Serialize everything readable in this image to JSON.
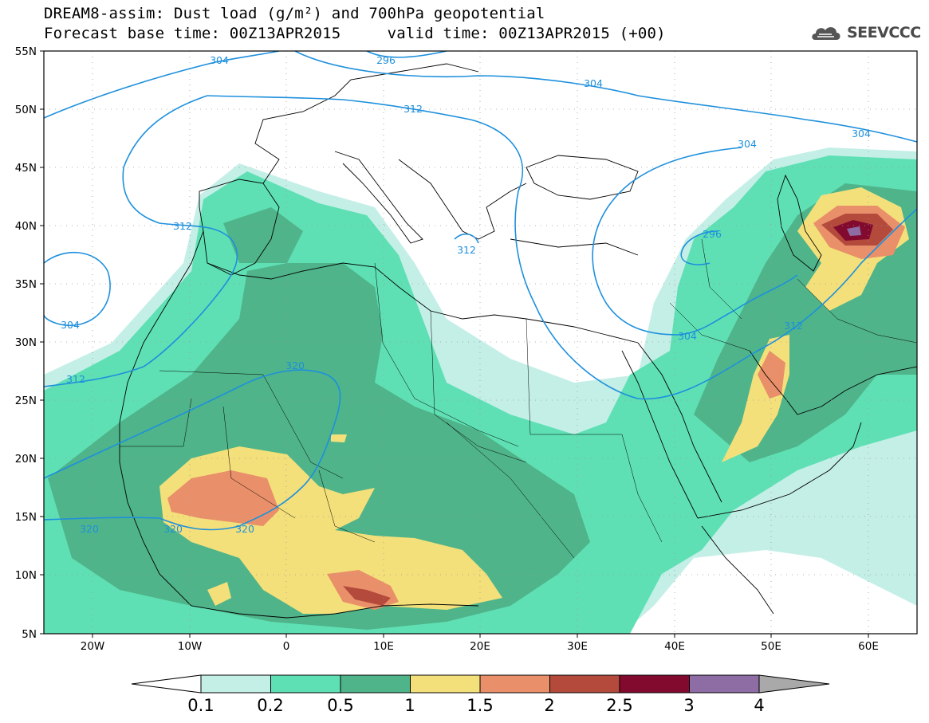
{
  "title": {
    "line1": "DREAM8-assim: Dust load (g/m²) and 700hPa geopotential",
    "line2": "Forecast base time: 00Z13APR2015     valid time: 00Z13APR2015 (+00)"
  },
  "logo": {
    "text": "SEEVCCC",
    "icon": "cloud-logo-icon"
  },
  "axes": {
    "lat_labels": [
      "55N",
      "50N",
      "45N",
      "40N",
      "35N",
      "30N",
      "25N",
      "20N",
      "15N",
      "10N",
      "5N"
    ],
    "lon_labels": [
      "20W",
      "10W",
      "0",
      "10E",
      "20E",
      "30E",
      "40E",
      "50E",
      "60E"
    ]
  },
  "contour_labels": [
    "304",
    "296",
    "304",
    "312",
    "312",
    "312",
    "304",
    "304",
    "296",
    "304",
    "312",
    "320",
    "312",
    "320",
    "320",
    "320"
  ],
  "colorbar": {
    "ticks": [
      "0.1",
      "0.2",
      "0.5",
      "1",
      "1.5",
      "2",
      "2.5",
      "3",
      "4"
    ],
    "colors": [
      "#c4efe7",
      "#5fe0b4",
      "#4fb48a",
      "#f4e07a",
      "#e9906a",
      "#b44a3c",
      "#820a2e",
      "#8e6ca4"
    ],
    "end_left_color": "#ffffff",
    "end_right_color": "#a9a9a9"
  },
  "contour_color": "#1e90dc"
}
